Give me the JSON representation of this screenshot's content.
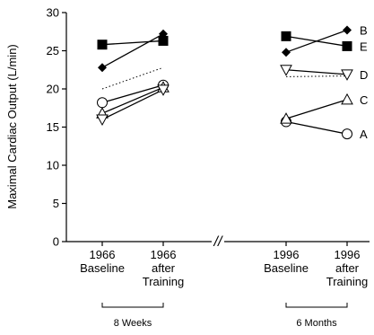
{
  "chart_data": {
    "type": "line",
    "ylabel": "Maximal Cardiac Output (L/min)",
    "ylim": [
      0,
      30
    ],
    "yticks": [
      0,
      5,
      10,
      15,
      20,
      25,
      30
    ],
    "grid": false,
    "categories": [
      {
        "line1": "1966",
        "line2": "Baseline",
        "line3": ""
      },
      {
        "line1": "1966",
        "line2": "after",
        "line3": "Training"
      },
      {
        "line1": "1996",
        "line2": "Baseline",
        "line3": ""
      },
      {
        "line1": "1996",
        "line2": "after",
        "line3": "Training"
      }
    ],
    "axis_break": "//",
    "periods": [
      {
        "label": "8 Weeks",
        "from": 0,
        "to": 1
      },
      {
        "label": "6 Months",
        "from": 2,
        "to": 3
      }
    ],
    "series": [
      {
        "name": "A",
        "marker": "circle-open",
        "line": "solid",
        "segments": [
          [
            18.2,
            20.5
          ],
          [
            15.7,
            14.1
          ]
        ]
      },
      {
        "name": "B",
        "marker": "diamond-filled",
        "line": "solid",
        "segments": [
          [
            22.8,
            27.2
          ],
          [
            24.8,
            27.7
          ]
        ]
      },
      {
        "name": "C",
        "marker": "triangle-up-open",
        "line": "solid",
        "segments": [
          [
            16.8,
            20.2
          ],
          [
            16.1,
            18.6
          ]
        ]
      },
      {
        "name": "D",
        "marker": "triangle-down-open",
        "line": "solid",
        "segments": [
          [
            16.0,
            19.9
          ],
          [
            22.5,
            21.9
          ]
        ]
      },
      {
        "name": "E",
        "marker": "square-filled",
        "line": "solid",
        "segments": [
          [
            25.8,
            26.3
          ],
          [
            26.9,
            25.6
          ]
        ]
      },
      {
        "name": "",
        "marker": "none",
        "line": "dotted",
        "segments": [
          [
            20.0,
            22.8
          ],
          [
            21.6,
            21.7
          ]
        ]
      }
    ]
  }
}
